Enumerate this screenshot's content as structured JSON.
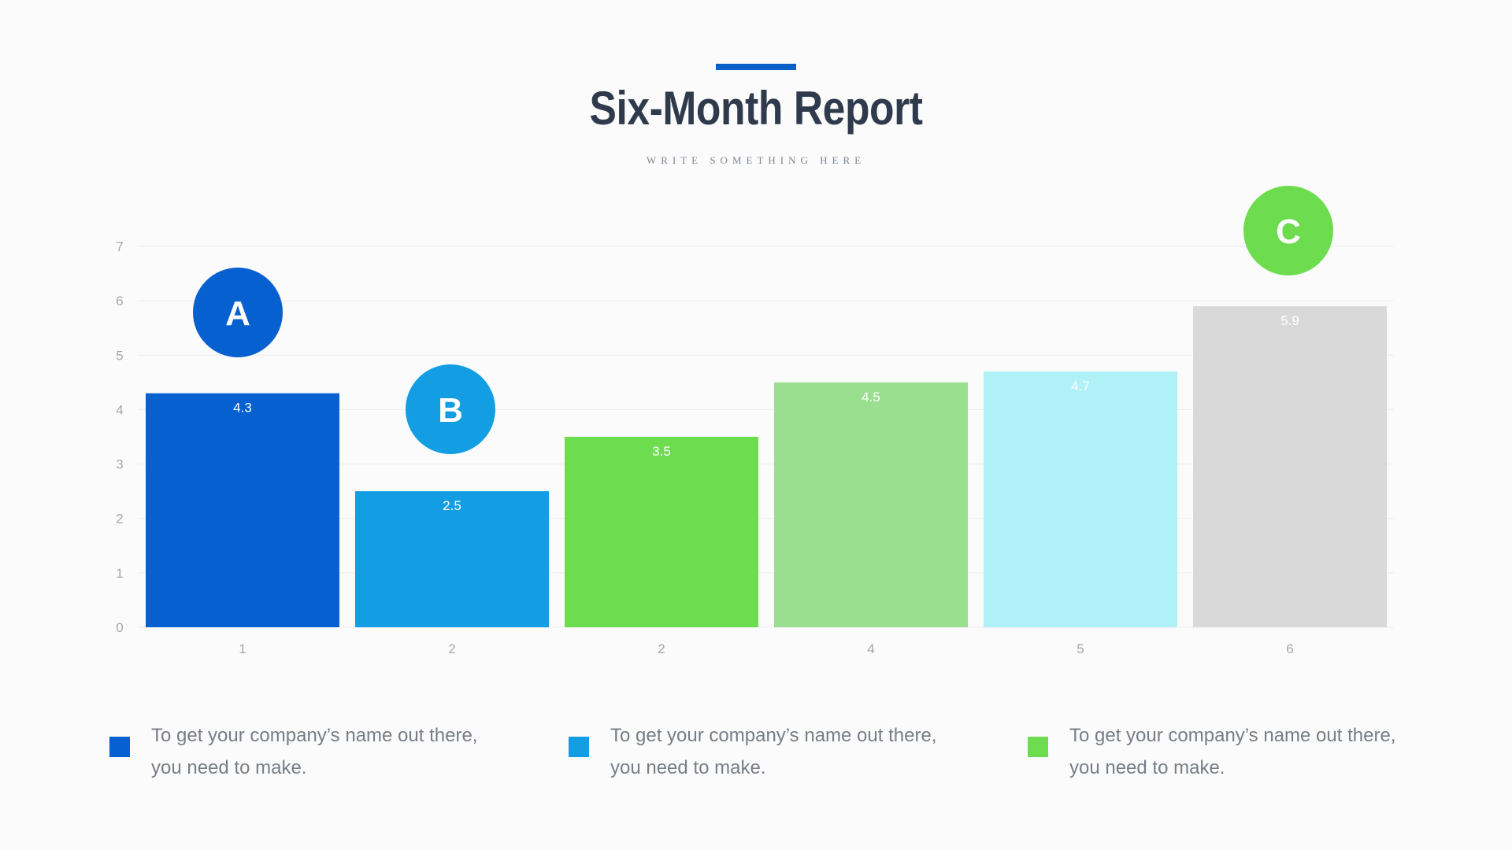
{
  "header": {
    "title": "Six-Month Report",
    "subtitle": "WRITE SOMETHING HERE",
    "accent_color": "#0b5fc9"
  },
  "chart_data": {
    "type": "bar",
    "categories": [
      "1",
      "2",
      "2",
      "4",
      "5",
      "6"
    ],
    "values": [
      4.3,
      2.5,
      3.5,
      4.5,
      4.7,
      5.9
    ],
    "value_labels": [
      "4.3",
      "2.5",
      "3.5",
      "4.5",
      "4.7",
      "5.9"
    ],
    "colors": [
      "#0760d0",
      "#139ee4",
      "#6ddd4f",
      "#99df8f",
      "#aff1f6",
      "#d9d9d9"
    ],
    "ylim": [
      0,
      7
    ],
    "yticks": [
      "0",
      "1",
      "2",
      "3",
      "4",
      "5",
      "6",
      "7"
    ],
    "grid": true,
    "title": "",
    "xlabel": "",
    "ylabel": "",
    "markers": [
      {
        "label": "A",
        "bar": 0,
        "color": "#0760d0"
      },
      {
        "label": "B",
        "bar": 1,
        "color": "#139ee4"
      },
      {
        "label": "C",
        "bar": 5,
        "color": "#6ddd4f"
      }
    ]
  },
  "legend": [
    {
      "color": "#0760d0",
      "text": "To get your company’s name out there, you need to make."
    },
    {
      "color": "#139ee4",
      "text": "To get your company’s name out there, you need to make."
    },
    {
      "color": "#6ddd4f",
      "text": "To get your company’s name out there, you need to make."
    }
  ]
}
